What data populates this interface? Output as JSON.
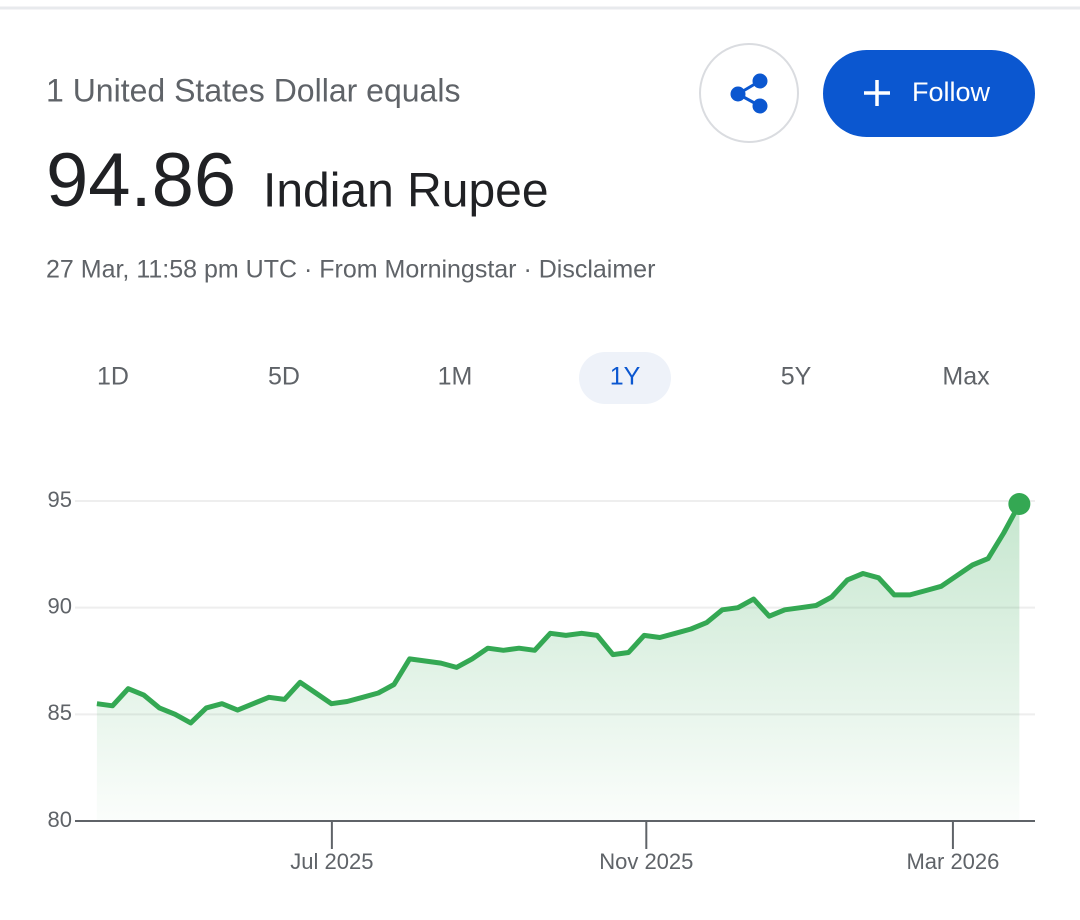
{
  "header": {
    "subtitle": "1 United States Dollar equals",
    "amount": "94.86",
    "currency": "Indian Rupee",
    "meta": "27 Mar, 11:58 pm UTC · From Morningstar · Disclaimer"
  },
  "buttons": {
    "follow": "Follow"
  },
  "tabs": {
    "items": [
      "1D",
      "5D",
      "1M",
      "1Y",
      "5Y",
      "Max"
    ],
    "active": 3
  },
  "chart_data": {
    "type": "area",
    "color": "#34a853",
    "values": [
      85.5,
      85.4,
      86.2,
      85.9,
      85.3,
      85.0,
      84.6,
      85.3,
      85.5,
      85.2,
      85.5,
      85.8,
      85.7,
      86.5,
      86.0,
      85.5,
      85.6,
      85.8,
      86.0,
      86.4,
      87.6,
      87.5,
      87.4,
      87.2,
      87.6,
      88.1,
      88.0,
      88.1,
      88.0,
      88.8,
      88.7,
      88.8,
      88.7,
      87.8,
      87.9,
      88.7,
      88.6,
      88.8,
      89.0,
      89.3,
      89.9,
      90.0,
      90.4,
      89.6,
      89.9,
      90.0,
      90.1,
      90.5,
      91.3,
      91.6,
      91.4,
      90.6,
      90.6,
      90.8,
      91.0,
      91.5,
      92.0,
      92.3,
      93.5,
      94.86
    ],
    "xlim": [
      -1.4,
      60.0
    ],
    "xticks": [
      {
        "value": 15.03,
        "label": "Jul 2025"
      },
      {
        "value": 35.14,
        "label": "Nov 2025"
      },
      {
        "value": 54.75,
        "label": "Mar 2026"
      }
    ],
    "ylim": [
      80,
      95
    ],
    "yticks": [
      80,
      85,
      90,
      95
    ],
    "grid": true,
    "end_marker": true
  }
}
